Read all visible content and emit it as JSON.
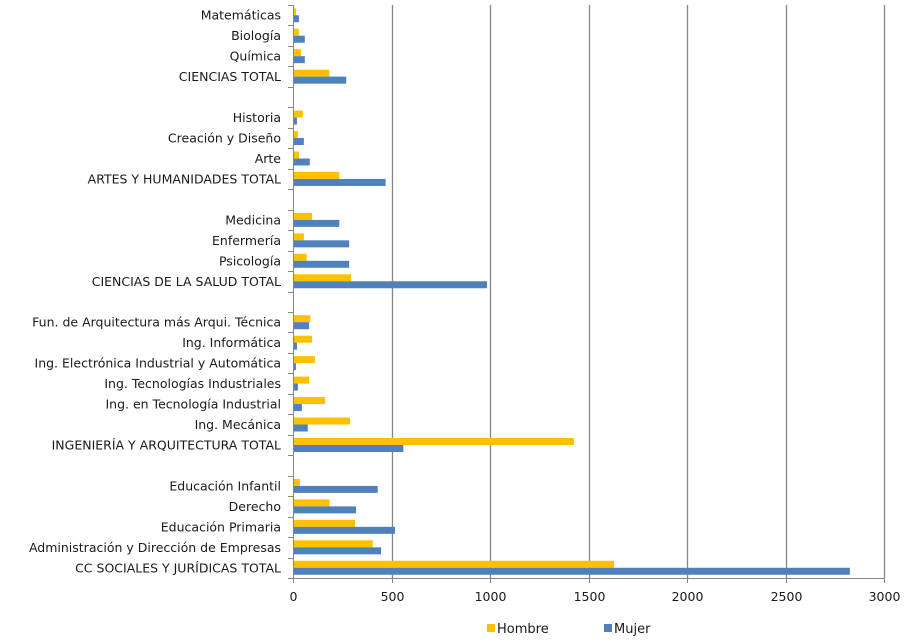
{
  "chart_data": {
    "type": "bar",
    "orientation": "horizontal",
    "title": "",
    "xlabel": "",
    "ylabel": "",
    "xlim": [
      0,
      3000
    ],
    "xticks": [
      0,
      500,
      1000,
      1500,
      2000,
      2500,
      3000
    ],
    "grid": "vertical",
    "legend_position": "bottom",
    "categories": [
      "Matemáticas",
      "Biología",
      "Química",
      "CIENCIAS TOTAL",
      "",
      "Historia",
      "Creación y Diseño",
      "Arte",
      "ARTES Y HUMANIDADES TOTAL",
      "",
      "Medicina",
      "Enfermería",
      "Psicología",
      "CIENCIAS DE LA SALUD TOTAL",
      "",
      "Fun. de Arquitectura más Arqui. Técnica",
      "Ing. Informática",
      "Ing. Electrónica Industrial y Automática",
      "Ing. Tecnologías Industriales",
      "Ing. en Tecnología Industrial",
      "Ing. Mecánica",
      "INGENIERÍA Y ARQUITECTURA TOTAL",
      "",
      "Educación Infantil",
      "Derecho",
      "Educación Primaria",
      "Administración y Dirección de Empresas",
      "CC SOCIALES Y JURÍDICAS TOTAL"
    ],
    "series": [
      {
        "name": "Hombre",
        "color": "#FFC000",
        "values": [
          15,
          30,
          40,
          185,
          null,
          50,
          25,
          30,
          235,
          null,
          97,
          55,
          70,
          295,
          null,
          88,
          97,
          112,
          82,
          163,
          290,
          1426,
          null,
          35,
          185,
          315,
          405,
          1630
        ]
      },
      {
        "name": "Mujer",
        "color": "#4F81BD",
        "values": [
          30,
          60,
          60,
          270,
          null,
          20,
          55,
          85,
          470,
          null,
          235,
          285,
          285,
          985,
          null,
          82,
          20,
          15,
          25,
          45,
          75,
          560,
          null,
          430,
          320,
          518,
          447,
          2827
        ]
      }
    ]
  }
}
